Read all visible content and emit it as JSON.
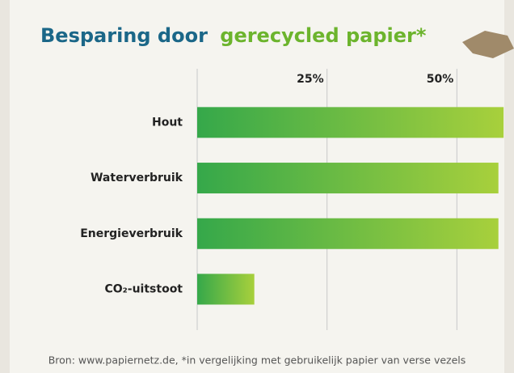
{
  "chart_data": {
    "type": "barh",
    "title": "Besparing door",
    "title_highlight": "gerecycled papier*",
    "categories": [
      "Hout",
      "Waterverbruik",
      "Energieverbruik",
      "CO₂-uitstoot"
    ],
    "values": [
      59,
      58,
      58,
      11
    ],
    "color_start": "#35a84a",
    "color_end": "#a8d03c",
    "xlim": [
      0,
      61
    ],
    "xticks": [
      {
        "value": 25,
        "label": "25%"
      },
      {
        "value": 50,
        "label": "50%"
      }
    ],
    "grid": true,
    "source": "Bron: www.papiernetz.de, *in vergelijking met gebruikelijk papier van verse vezels"
  }
}
